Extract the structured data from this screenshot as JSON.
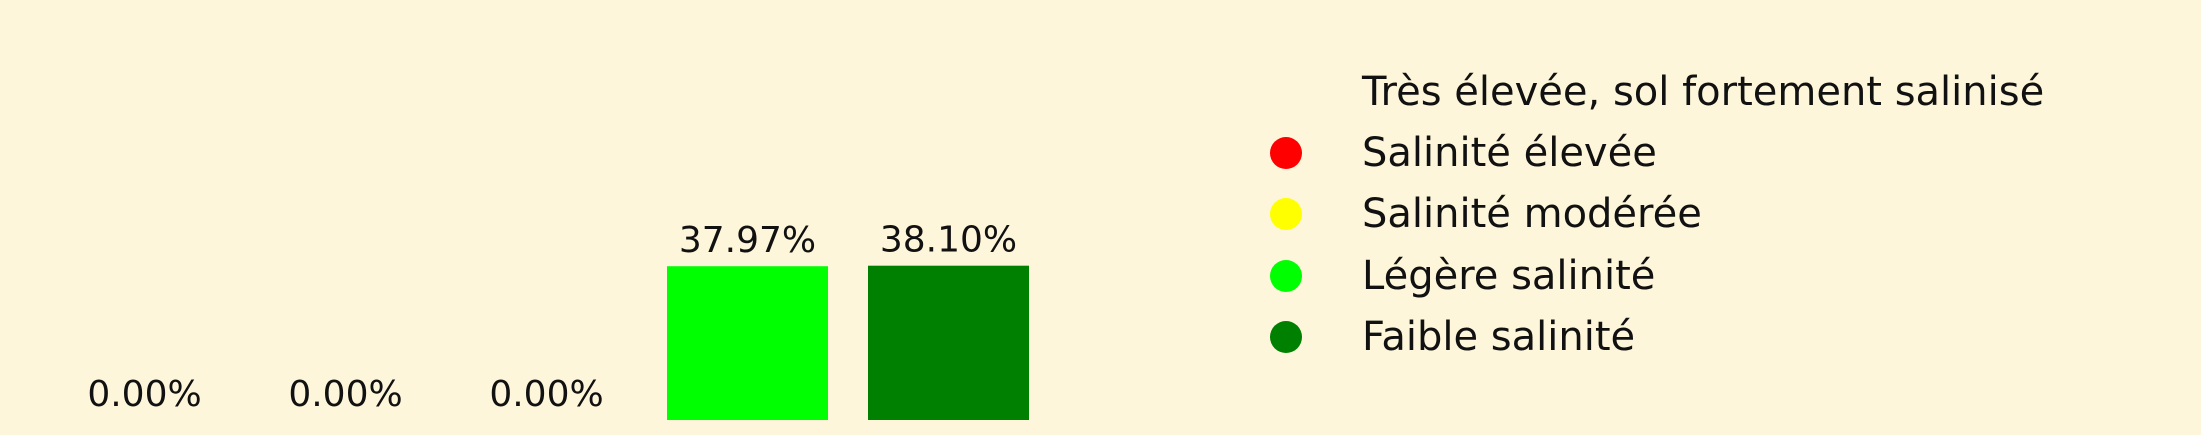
{
  "chart_data": {
    "type": "bar",
    "categories": [
      "Très élevée, sol fortement salinisé",
      "Salinité élevée",
      "Salinité modérée",
      "Légère salinité",
      "Faible salinité"
    ],
    "values": [
      0.0,
      0.0,
      0.0,
      37.97,
      38.1
    ],
    "value_labels": [
      "0.00%",
      "0.00%",
      "0.00%",
      "37.97%",
      "38.10%"
    ],
    "colors": [
      "#8b0000",
      "#ff0000",
      "#ffff00",
      "#00ff00",
      "#008000"
    ],
    "ylim": [
      0,
      45
    ],
    "grid": false,
    "legend_position": "right",
    "legend": [
      {
        "label": "Très élevée, sol fortement salinisé",
        "color": "",
        "icon": "none"
      },
      {
        "label": "Salinité élevée",
        "color": "#ff0000",
        "icon": "circle"
      },
      {
        "label": "Salinité modérée",
        "color": "#ffff00",
        "icon": "circle"
      },
      {
        "label": "Légère salinité",
        "color": "#00ff00",
        "icon": "circle"
      },
      {
        "label": "Faible salinité",
        "color": "#008000",
        "icon": "circle"
      }
    ]
  },
  "background_color": "#fdf6da"
}
